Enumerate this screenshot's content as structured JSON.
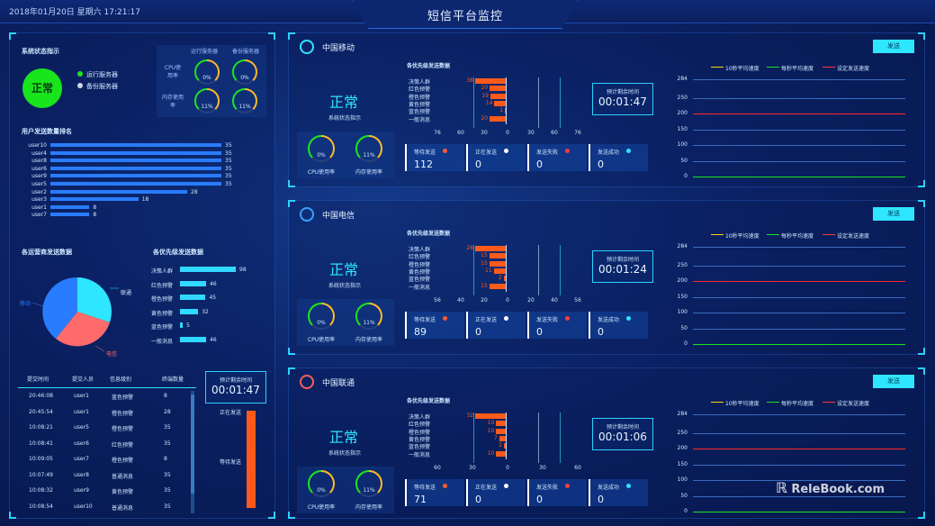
{
  "header": {
    "datetime": "2018年01月20日 星期六 17:21:17",
    "title": "短信平台监控"
  },
  "left": {
    "status": {
      "title": "系统状态指示",
      "value": "正常",
      "legend_running": "运行服务器",
      "legend_backup": "备份服务器",
      "col_running": "运行服务器",
      "col_backup": "备份服务器",
      "cpu_label": "CPU使用率",
      "mem_label": "内存使用率",
      "cpu_running": "0%",
      "cpu_backup": "0%",
      "mem_running": "11%",
      "mem_backup": "11%"
    },
    "user_rank": {
      "title": "用户发送数量排名",
      "users": [
        {
          "name": "user10",
          "value": 35
        },
        {
          "name": "user4",
          "value": 35
        },
        {
          "name": "user8",
          "value": 35
        },
        {
          "name": "user6",
          "value": 35
        },
        {
          "name": "user9",
          "value": 35
        },
        {
          "name": "user5",
          "value": 35
        },
        {
          "name": "user2",
          "value": 28
        },
        {
          "name": "user3",
          "value": 18
        },
        {
          "name": "user1",
          "value": 8
        },
        {
          "name": "user7",
          "value": 8
        }
      ]
    },
    "carrier_pie": {
      "title": "各运营商发送数据",
      "labels": [
        "联通",
        "电信",
        "移动"
      ]
    },
    "priority": {
      "title": "各优先级发送数据",
      "items": [
        {
          "name": "决策人群",
          "value": 98
        },
        {
          "name": "红色预警",
          "value": 46
        },
        {
          "name": "橙色预警",
          "value": 45
        },
        {
          "name": "黄色预警",
          "value": 32
        },
        {
          "name": "蓝色预警",
          "value": 5
        },
        {
          "name": "一般消息",
          "value": 46
        }
      ]
    },
    "table": {
      "headers": [
        "提交时间",
        "提交人员",
        "信息级别",
        "终端数量"
      ],
      "rows": [
        [
          "20:46:08",
          "user1",
          "蓝色预警",
          "8"
        ],
        [
          "20:45:54",
          "user1",
          "橙色预警",
          "28"
        ],
        [
          "10:08:21",
          "user5",
          "橙色预警",
          "35"
        ],
        [
          "10:08:41",
          "user6",
          "红色预警",
          "35"
        ],
        [
          "10:09:05",
          "user7",
          "橙色预警",
          "8"
        ],
        [
          "10:07:49",
          "user8",
          "普通消息",
          "35"
        ],
        [
          "10:08:32",
          "user9",
          "黄色预警",
          "35"
        ],
        [
          "10:08:54",
          "user10",
          "普通消息",
          "35"
        ]
      ]
    },
    "remaining": {
      "title": "预计剩余时间",
      "value": "00:01:47",
      "sending": "正在发送",
      "waiting": "等待发送"
    }
  },
  "carriers": [
    {
      "name": "中国移动",
      "send": "发送",
      "status": "正常",
      "status_label": "系统状态指示",
      "cpu": "0%",
      "mem": "11%",
      "cpu_label": "CPU使用率",
      "mem_label": "内存使用率",
      "pri_title": "各优先级发送数据",
      "pri_values": [
        38,
        20,
        19,
        14,
        1,
        20
      ],
      "pri_ticks": [
        "76",
        "60",
        "30",
        "0",
        "30",
        "60",
        "76"
      ],
      "remaining_title": "预计剩余时间",
      "remaining": "00:01:47",
      "stats": [
        {
          "label": "等待发送",
          "value": "112",
          "color": "#ff5a2a"
        },
        {
          "label": "正在发送",
          "value": "0",
          "color": "#ffffff"
        },
        {
          "label": "发送失败",
          "value": "0",
          "color": "#ff3a3a"
        },
        {
          "label": "发送成功",
          "value": "0",
          "color": "#2ee6ff"
        }
      ]
    },
    {
      "name": "中国电信",
      "send": "发送",
      "status": "正常",
      "status_label": "系统状态指示",
      "cpu": "0%",
      "mem": "11%",
      "cpu_label": "CPU使用率",
      "mem_label": "内存使用率",
      "pri_title": "各优先级发送数据",
      "pri_values": [
        28,
        15,
        15,
        11,
        2,
        15
      ],
      "pri_ticks": [
        "56",
        "40",
        "20",
        "0",
        "20",
        "40",
        "56"
      ],
      "remaining_title": "预计剩余时间",
      "remaining": "00:01:24",
      "stats": [
        {
          "label": "等待发送",
          "value": "89",
          "color": "#ff5a2a"
        },
        {
          "label": "正在发送",
          "value": "0",
          "color": "#ffffff"
        },
        {
          "label": "发送失败",
          "value": "0",
          "color": "#ff3a3a"
        },
        {
          "label": "发送成功",
          "value": "0",
          "color": "#2ee6ff"
        }
      ]
    },
    {
      "name": "中国联通",
      "send": "发送",
      "status": "正常",
      "status_label": "系统状态指示",
      "cpu": "0%",
      "mem": "11%",
      "cpu_label": "CPU使用率",
      "mem_label": "内存使用率",
      "pri_title": "各优先级发送数据",
      "pri_values": [
        32,
        10,
        10,
        7,
        2,
        10
      ],
      "pri_ticks": [
        "60",
        "30",
        "0",
        "30",
        "60"
      ],
      "remaining_title": "预计剩余时间",
      "remaining": "00:01:06",
      "stats": [
        {
          "label": "等待发送",
          "value": "71",
          "color": "#ff5a2a"
        },
        {
          "label": "正在发送",
          "value": "0",
          "color": "#ffffff"
        },
        {
          "label": "发送失败",
          "value": "0",
          "color": "#ff3a3a"
        },
        {
          "label": "发送成功",
          "value": "0",
          "color": "#2ee6ff"
        }
      ]
    }
  ],
  "speed_legend": [
    "10秒平均速度",
    "每秒平均速度",
    "设定发送速度"
  ],
  "speed_ticks": [
    "284",
    "250",
    "200",
    "150",
    "100",
    "50",
    "0"
  ],
  "watermark": "ReleBook.com",
  "chart_data": [
    {
      "type": "bar",
      "title": "用户发送数量排名",
      "categories": [
        "user10",
        "user4",
        "user8",
        "user6",
        "user9",
        "user5",
        "user2",
        "user3",
        "user1",
        "user7"
      ],
      "values": [
        35,
        35,
        35,
        35,
        35,
        35,
        28,
        18,
        8,
        8
      ]
    },
    {
      "type": "pie",
      "title": "各运营商发送数据",
      "categories": [
        "联通",
        "电信",
        "移动"
      ]
    },
    {
      "type": "bar",
      "title": "各优先级发送数据",
      "categories": [
        "决策人群",
        "红色预警",
        "橙色预警",
        "黄色预警",
        "蓝色预警",
        "一般消息"
      ],
      "values": [
        98,
        46,
        45,
        32,
        5,
        46
      ]
    }
  ]
}
